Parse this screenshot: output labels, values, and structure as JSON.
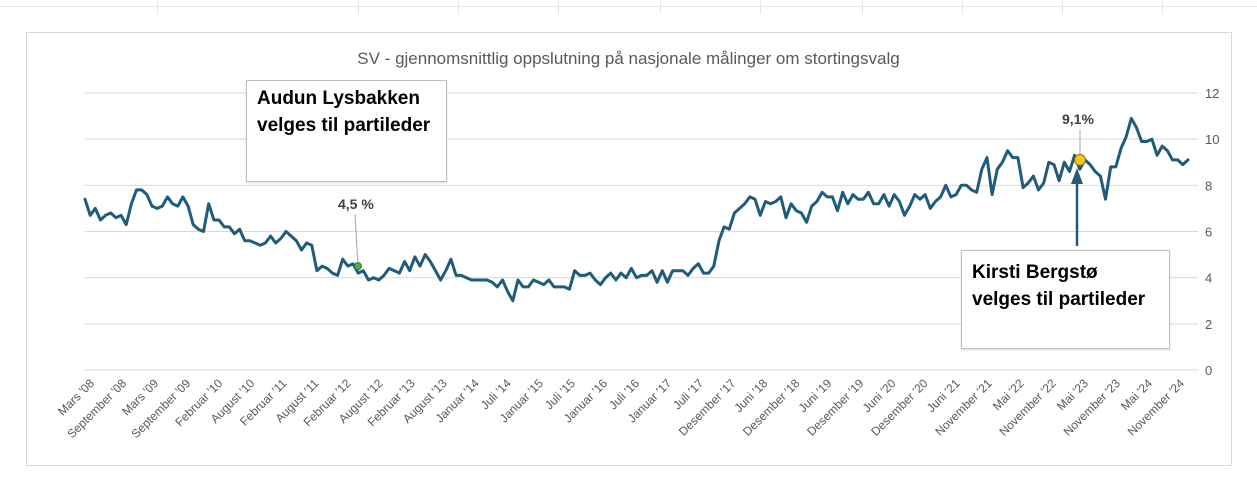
{
  "chart_data": {
    "type": "line",
    "title": "SV - gjennomsnittlig oppslutning på nasjonale målinger om stortingsvalg",
    "xlabel": "",
    "ylabel": "",
    "ylim": [
      0,
      12
    ],
    "yticks": [
      "0",
      "2",
      "4",
      "6",
      "8",
      "10",
      "12"
    ],
    "yaxis_position": "right",
    "grid": true,
    "line_color": "#1f5c7a",
    "x_tick_labels": [
      "Mars '08",
      "September '08",
      "Mars '09",
      "September '09",
      "Februar '10",
      "August '10",
      "Februar '11",
      "August '11",
      "Februar '12",
      "August '12",
      "Februar '13",
      "August '13",
      "Januar '14",
      "Juli '14",
      "Januar '15",
      "Juli '15",
      "Januar '16",
      "Juli '16",
      "Januar '17",
      "Juli '17",
      "Desember '17",
      "Juni '18",
      "Desember '18",
      "Juni '19",
      "Desember '19",
      "Juni '20",
      "Desember '20",
      "Juni '21",
      "November '21",
      "Mai '22",
      "November '22",
      "Mai '23",
      "November '23",
      "Mai '24",
      "November '24"
    ],
    "values": [
      7.4,
      6.7,
      7.0,
      6.5,
      6.7,
      6.8,
      6.6,
      6.7,
      6.3,
      7.2,
      7.8,
      7.8,
      7.6,
      7.1,
      7.0,
      7.1,
      7.5,
      7.2,
      7.1,
      7.5,
      7.1,
      6.3,
      6.1,
      6.0,
      7.2,
      6.5,
      6.5,
      6.2,
      6.2,
      5.9,
      6.1,
      5.6,
      5.6,
      5.5,
      5.4,
      5.5,
      5.8,
      5.5,
      5.7,
      6.0,
      5.8,
      5.6,
      5.2,
      5.5,
      5.4,
      4.3,
      4.5,
      4.4,
      4.2,
      4.1,
      4.8,
      4.5,
      4.6,
      4.2,
      4.3,
      3.9,
      4.0,
      3.9,
      4.1,
      4.4,
      4.3,
      4.2,
      4.7,
      4.3,
      4.9,
      4.5,
      5.0,
      4.7,
      4.3,
      3.9,
      4.3,
      4.8,
      4.1,
      4.1,
      4.0,
      3.9,
      3.9,
      3.9,
      3.9,
      3.8,
      3.6,
      3.9,
      3.4,
      3.0,
      3.9,
      3.6,
      3.6,
      3.9,
      3.8,
      3.7,
      3.9,
      3.6,
      3.6,
      3.6,
      3.5,
      4.3,
      4.1,
      4.1,
      4.2,
      3.9,
      3.7,
      4.0,
      4.2,
      3.9,
      4.2,
      4.0,
      4.4,
      4.0,
      4.1,
      4.1,
      4.3,
      3.8,
      4.3,
      3.8,
      4.3,
      4.3,
      4.3,
      4.1,
      4.4,
      4.6,
      4.2,
      4.2,
      4.5,
      5.6,
      6.2,
      6.1,
      6.8,
      7.0,
      7.2,
      7.5,
      7.4,
      6.7,
      7.3,
      7.2,
      7.3,
      7.5,
      6.6,
      7.2,
      6.9,
      6.8,
      6.4,
      7.1,
      7.3,
      7.7,
      7.5,
      7.5,
      6.9,
      7.7,
      7.2,
      7.6,
      7.4,
      7.4,
      7.7,
      7.2,
      7.2,
      7.6,
      7.1,
      7.6,
      7.3,
      6.7,
      7.1,
      7.6,
      7.4,
      7.6,
      7.0,
      7.3,
      7.5,
      8.0,
      7.5,
      7.6,
      8.0,
      8.0,
      7.8,
      7.7,
      8.7,
      9.2,
      7.6,
      8.7,
      9.0,
      9.5,
      9.2,
      9.2,
      7.9,
      8.1,
      8.4,
      7.8,
      8.1,
      9.0,
      8.9,
      8.2,
      9.0,
      8.6,
      9.3,
      8.7,
      9.1,
      8.9,
      8.6,
      8.4,
      7.4,
      8.8,
      8.8,
      9.6,
      10.1,
      10.9,
      10.5,
      9.9,
      9.9,
      10.0,
      9.3,
      9.7,
      9.5,
      9.1,
      9.1,
      8.9,
      9.1
    ],
    "annotations": [
      {
        "text": "Audun Lysbakken velges til partileder",
        "value_label": "4,5 %",
        "value": 4.5
      },
      {
        "text": "Kirsti Bergstø velges til partileder",
        "value_label": "9,1%",
        "value": 9.1
      }
    ]
  }
}
